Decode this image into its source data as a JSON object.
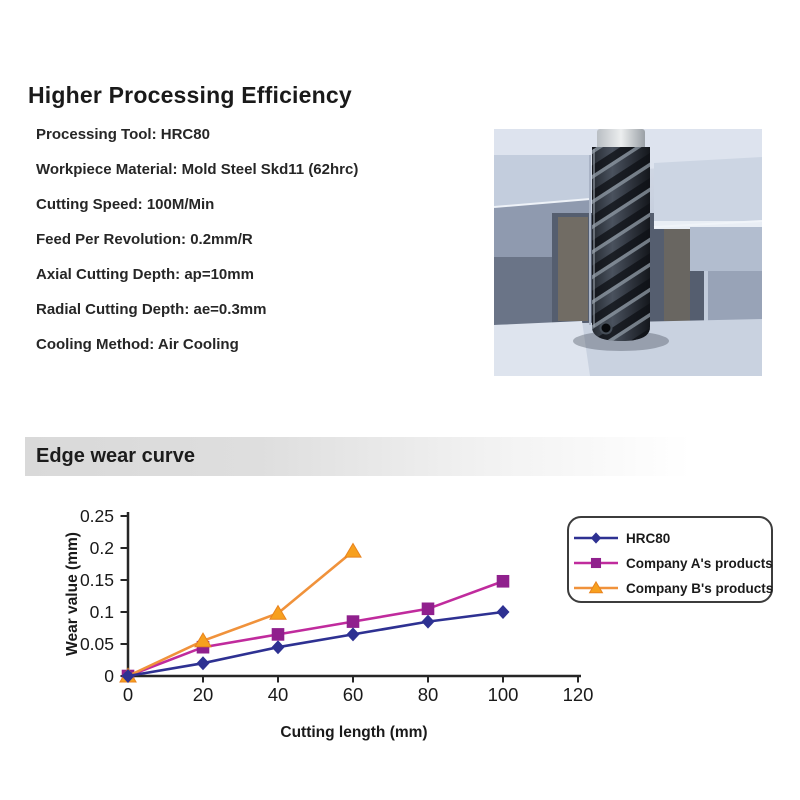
{
  "header": {
    "title": "Higher Processing Efficiency"
  },
  "specs": [
    "Processing Tool: HRC80",
    "Workpiece Material: Mold Steel Skd11 (62hrc)",
    "Cutting Speed: 100M/Min",
    "Feed Per Revolution: 0.2mm/R",
    "Axial Cutting Depth: ap=10mm",
    "Radial Cutting Depth: ae=0.3mm",
    "Cooling Method: Air Cooling"
  ],
  "section": {
    "title": "Edge wear curve"
  },
  "colors": {
    "text": "#1c1c1c",
    "axis": "#262626",
    "section_bar_start": "#d9d9d9",
    "section_bar_end": "#ffffff",
    "legend_border": "#3c3c3c",
    "hrc80_blue": "#2e3192",
    "company_a_line": "#c02b9d",
    "company_a_marker": "#90208d",
    "company_b_line": "#f0923b",
    "company_b_marker": "#f7a01e"
  },
  "chart_data": {
    "type": "line",
    "title": "",
    "xlabel": "Cutting length (mm)",
    "ylabel": "Wear value (mm)",
    "xlim": [
      0,
      120
    ],
    "ylim": [
      0,
      0.25
    ],
    "x_ticks": [
      0,
      20,
      40,
      60,
      80,
      100,
      120
    ],
    "x_tick_labels": [
      "0",
      "20",
      "40",
      "60",
      "80",
      "100",
      "120"
    ],
    "y_ticks": [
      0,
      0.05,
      0.1,
      0.15,
      0.2,
      0.25
    ],
    "y_tick_labels": [
      "0",
      "0.05",
      "0.1",
      "0.15",
      "0.2",
      "0.25"
    ],
    "grid": false,
    "legend_position": "upper right",
    "series": [
      {
        "name": "HRC80",
        "marker": "diamond",
        "line_color": "#2e3192",
        "marker_color": "#2e3192",
        "x": [
          0,
          20,
          40,
          60,
          80,
          100
        ],
        "y": [
          0,
          0.02,
          0.045,
          0.065,
          0.085,
          0.1
        ],
        "z": 3
      },
      {
        "name": "Company A's products",
        "marker": "square",
        "line_color": "#c02b9d",
        "marker_color": "#90208d",
        "x": [
          0,
          20,
          40,
          60,
          80,
          100
        ],
        "y": [
          0,
          0.045,
          0.065,
          0.085,
          0.105,
          0.148
        ],
        "z": 1
      },
      {
        "name": "Company B's products",
        "marker": "triangle",
        "line_color": "#f0923b",
        "marker_color": "#f7a01e",
        "x": [
          0,
          20,
          40,
          60
        ],
        "y": [
          0,
          0.055,
          0.098,
          0.195
        ],
        "z": 2
      }
    ]
  }
}
